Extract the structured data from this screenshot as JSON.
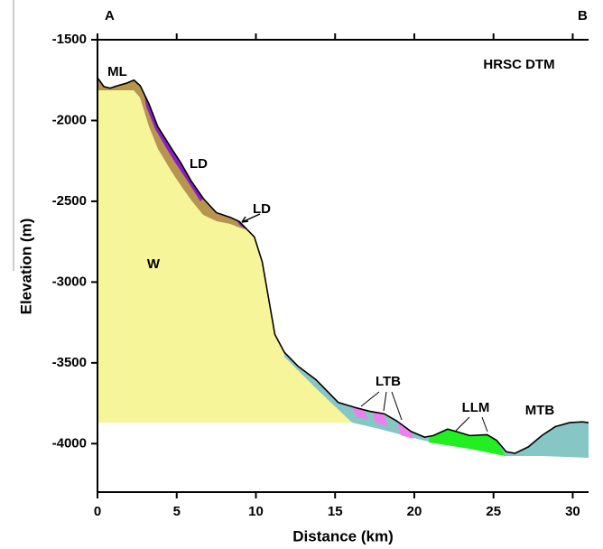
{
  "chart_data": {
    "type": "line",
    "xlabel": "Distance (km)",
    "ylabel": "Elevation (m)",
    "annotations": [
      "A",
      "B",
      "HRSC DTM",
      "ML",
      "LD",
      "LD",
      "W",
      "LTB",
      "LLM",
      "MTB"
    ],
    "xlim": [
      0,
      31
    ],
    "ylim": [
      -4300,
      -1500
    ],
    "xticks": [
      0,
      5,
      10,
      15,
      20,
      25,
      30
    ],
    "yticks": [
      -1500,
      -2000,
      -2500,
      -3000,
      -3500,
      -4000
    ],
    "series": [
      {
        "color": "#000000",
        "x": [
          0,
          0.4,
          0.8,
          1.25,
          1.8,
          2.3,
          2.7,
          3.25,
          3.8,
          4.7,
          5.25,
          5.9,
          6.7,
          7.5,
          8.4,
          8.95,
          9.5,
          9.9,
          10.4,
          10.8,
          11.2,
          11.8,
          12.65,
          13.8,
          15.2,
          16.4,
          17.2,
          18.1,
          18.9,
          19.8,
          20.65,
          21.2,
          22.1,
          22.65,
          23.5,
          24.6,
          25.2,
          25.8,
          26.35,
          27.2,
          28.05,
          28.9,
          29.8,
          30.6,
          31
        ],
        "values": [
          -1735,
          -1790,
          -1800,
          -1785,
          -1770,
          -1750,
          -1785,
          -1897,
          -2037,
          -2177,
          -2260,
          -2372,
          -2485,
          -2570,
          -2600,
          -2625,
          -2680,
          -2720,
          -2875,
          -3100,
          -3325,
          -3435,
          -3520,
          -3605,
          -3745,
          -3780,
          -3800,
          -3815,
          -3860,
          -3925,
          -3960,
          -3950,
          -3910,
          -3925,
          -3950,
          -3945,
          -3980,
          -4050,
          -4060,
          -4020,
          -3950,
          -3895,
          -3870,
          -3865,
          -3870
        ]
      }
    ]
  }
}
